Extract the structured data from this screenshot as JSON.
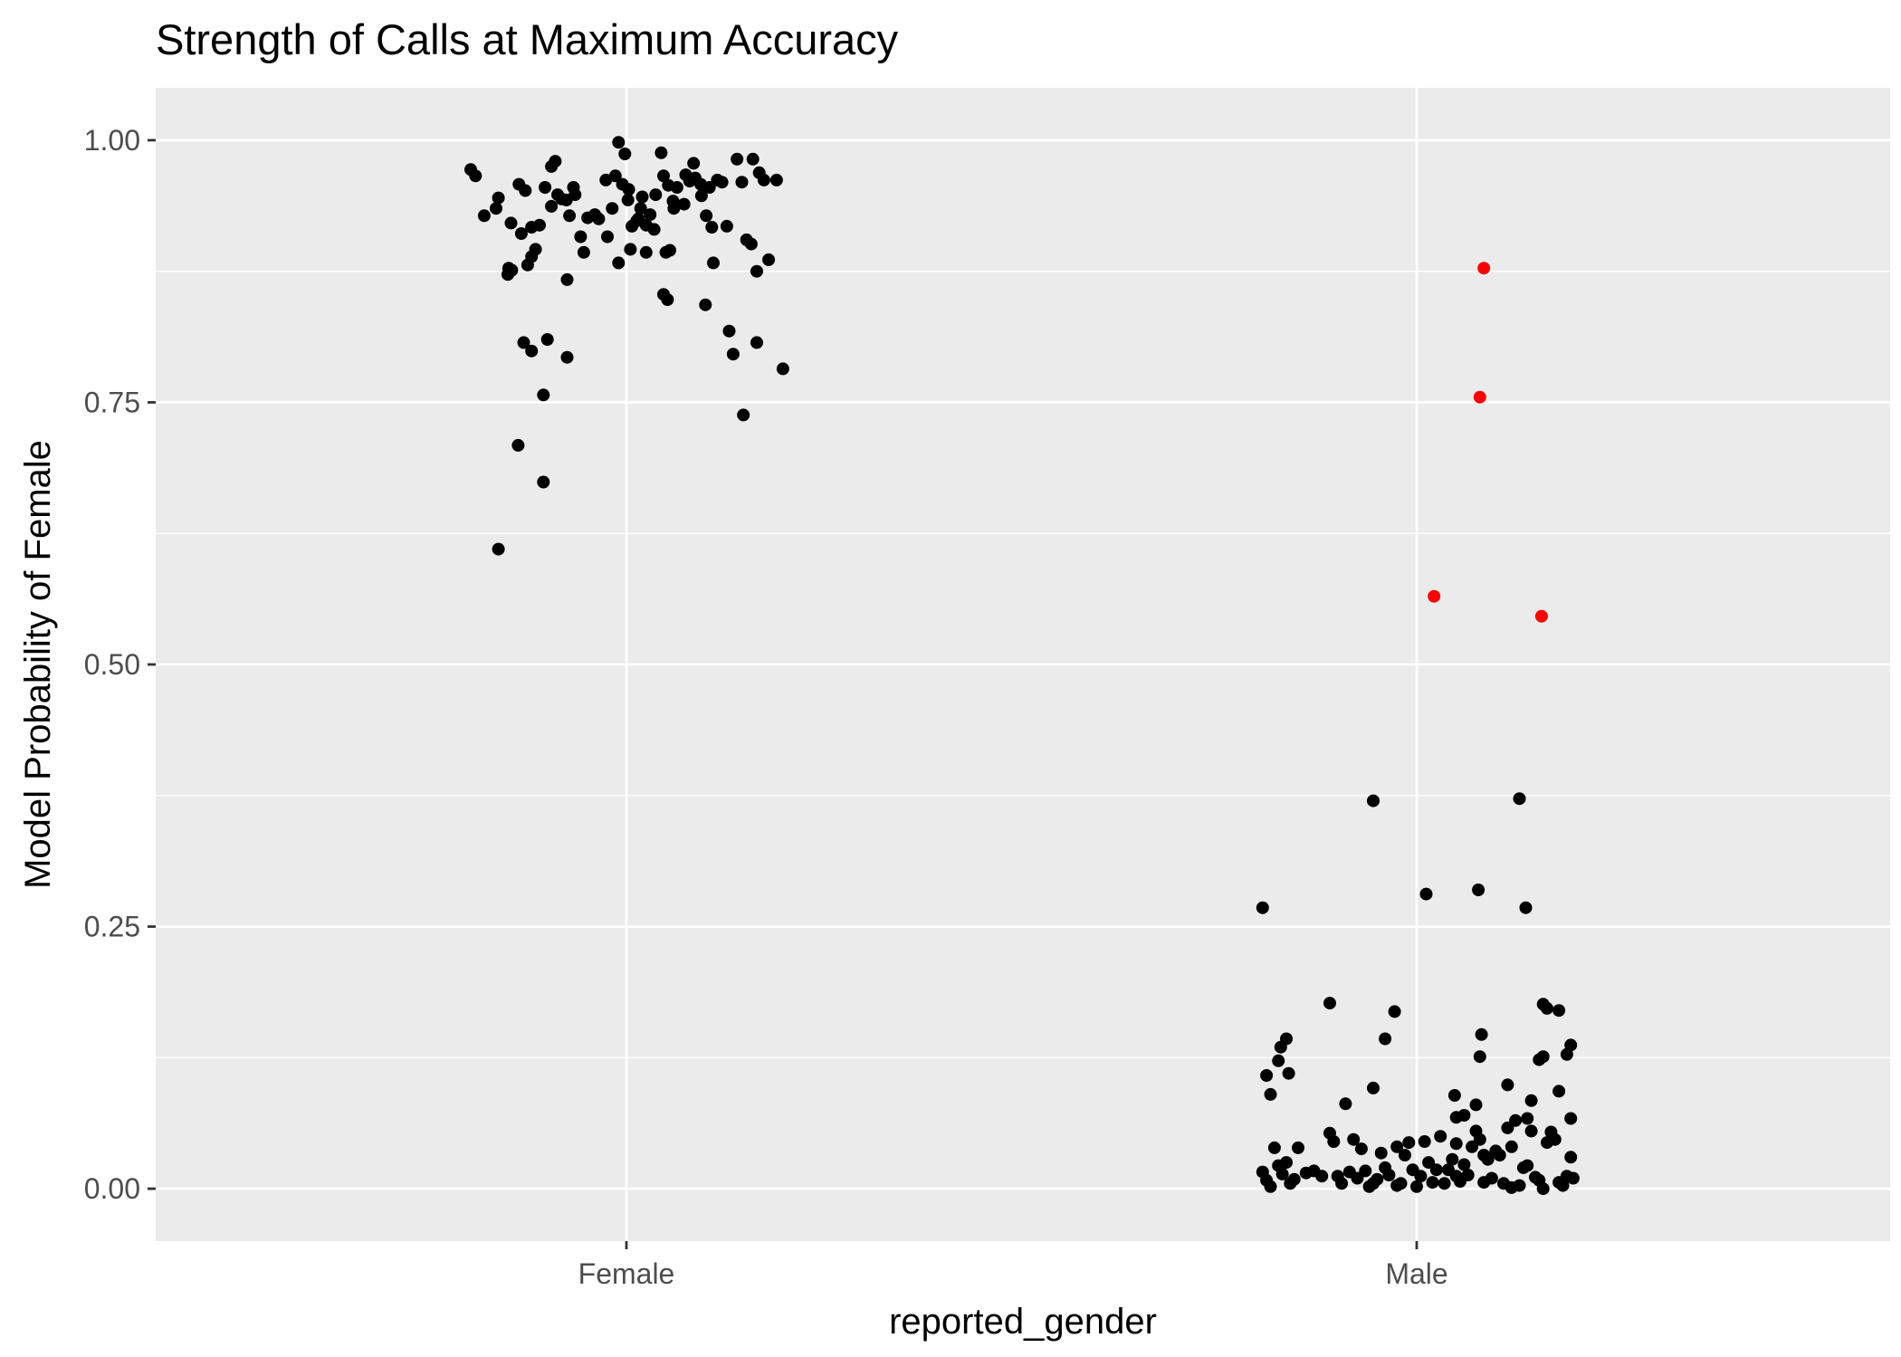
{
  "chart_data": {
    "type": "scatter",
    "title": "Strength of Calls at Maximum Accuracy",
    "xlabel": "reported_gender",
    "ylabel": "Model Probability of Female",
    "categories": [
      "Female",
      "Male"
    ],
    "ylim": [
      -0.05,
      1.05
    ],
    "yticks": [
      "0.00",
      "0.25",
      "0.50",
      "0.75",
      "1.00"
    ],
    "grid": true,
    "legend": "none",
    "colors": {
      "correct": "#000000",
      "misclassified": "#ff0000",
      "panel": "#ebebeb",
      "grid": "#ffffff"
    },
    "series": [
      {
        "category": "Female",
        "color": "#000000",
        "points": [
          [
            -0.197,
            0.972
          ],
          [
            -0.191,
            0.966
          ],
          [
            -0.18,
            0.928
          ],
          [
            -0.165,
            0.935
          ],
          [
            -0.162,
            0.945
          ],
          [
            -0.149,
            0.878
          ],
          [
            -0.146,
            0.921
          ],
          [
            -0.136,
            0.958
          ],
          [
            -0.133,
            0.911
          ],
          [
            -0.128,
            0.952
          ],
          [
            -0.12,
            0.917
          ],
          [
            -0.11,
            0.919
          ],
          [
            -0.103,
            0.955
          ],
          [
            -0.095,
            0.975
          ],
          [
            -0.09,
            0.98
          ],
          [
            -0.087,
            0.948
          ],
          [
            -0.082,
            0.944
          ],
          [
            -0.076,
            0.943
          ],
          [
            -0.072,
            0.928
          ],
          [
            -0.067,
            0.955
          ],
          [
            -0.058,
            0.908
          ],
          [
            -0.054,
            0.893
          ],
          [
            -0.049,
            0.926
          ],
          [
            -0.04,
            0.929
          ],
          [
            -0.035,
            0.925
          ],
          [
            -0.026,
            0.962
          ],
          [
            -0.024,
            0.908
          ],
          [
            -0.018,
            0.935
          ],
          [
            -0.014,
            0.966
          ],
          [
            -0.01,
            0.998
          ],
          [
            -0.005,
            0.958
          ],
          [
            -0.002,
            0.987
          ],
          [
            0.003,
            0.953
          ],
          [
            0.007,
            0.918
          ],
          [
            0.013,
            0.923
          ],
          [
            0.018,
            0.935
          ],
          [
            0.025,
            0.919
          ],
          [
            0.03,
            0.929
          ],
          [
            0.037,
            0.948
          ],
          [
            0.044,
            0.988
          ],
          [
            0.047,
            0.966
          ],
          [
            0.053,
            0.957
          ],
          [
            0.059,
            0.942
          ],
          [
            0.064,
            0.955
          ],
          [
            0.073,
            0.939
          ],
          [
            0.08,
            0.961
          ],
          [
            0.087,
            0.964
          ],
          [
            0.094,
            0.958
          ],
          [
            0.101,
            0.928
          ],
          [
            0.108,
            0.917
          ],
          [
            0.115,
            0.962
          ],
          [
            0.121,
            0.96
          ],
          [
            0.127,
            0.918
          ],
          [
            0.14,
            0.982
          ],
          [
            0.146,
            0.96
          ],
          [
            0.152,
            0.905
          ],
          [
            0.158,
            0.901
          ],
          [
            0.165,
            0.875
          ],
          [
            0.174,
            0.962
          ],
          [
            0.168,
            0.969
          ],
          [
            0.18,
            0.886
          ],
          [
            -0.15,
            0.872
          ],
          [
            -0.145,
            0.876
          ],
          [
            -0.125,
            0.881
          ],
          [
            -0.12,
            0.889
          ],
          [
            -0.115,
            0.896
          ],
          [
            -0.075,
            0.867
          ],
          [
            -0.01,
            0.883
          ],
          [
            0.005,
            0.896
          ],
          [
            0.025,
            0.893
          ],
          [
            0.05,
            0.893
          ],
          [
            0.055,
            0.895
          ],
          [
            0.11,
            0.883
          ],
          [
            -0.13,
            0.807
          ],
          [
            -0.12,
            0.799
          ],
          [
            -0.1,
            0.81
          ],
          [
            -0.075,
            0.793
          ],
          [
            -0.137,
            0.709
          ],
          [
            -0.105,
            0.757
          ],
          [
            -0.105,
            0.674
          ],
          [
            -0.162,
            0.61
          ],
          [
            0.047,
            0.853
          ],
          [
            0.052,
            0.848
          ],
          [
            0.1,
            0.843
          ],
          [
            0.13,
            0.818
          ],
          [
            0.135,
            0.796
          ],
          [
            0.165,
            0.807
          ],
          [
            0.198,
            0.782
          ],
          [
            0.148,
            0.738
          ],
          [
            0.06,
            0.935
          ],
          [
            0.095,
            0.947
          ],
          [
            0.002,
            0.943
          ],
          [
            -0.095,
            0.937
          ],
          [
            -0.065,
            0.948
          ],
          [
            0.015,
            0.925
          ],
          [
            0.075,
            0.967
          ],
          [
            0.02,
            0.946
          ],
          [
            0.19,
            0.962
          ],
          [
            0.105,
            0.955
          ],
          [
            0.16,
            0.982
          ],
          [
            0.085,
            0.978
          ],
          [
            0.035,
            0.915
          ]
        ]
      },
      {
        "category": "Male",
        "color": "#000000",
        "points": [
          [
            -0.195,
            0.268
          ],
          [
            -0.19,
            0.108
          ],
          [
            -0.185,
            0.09
          ],
          [
            -0.175,
            0.122
          ],
          [
            -0.172,
            0.135
          ],
          [
            -0.165,
            0.143
          ],
          [
            -0.162,
            0.11
          ],
          [
            -0.11,
            0.177
          ],
          [
            -0.09,
            0.081
          ],
          [
            -0.055,
            0.096
          ],
          [
            -0.055,
            0.37
          ],
          [
            -0.04,
            0.143
          ],
          [
            -0.028,
            0.169
          ],
          [
            0.012,
            0.281
          ],
          [
            0.078,
            0.285
          ],
          [
            0.08,
            0.126
          ],
          [
            0.082,
            0.147
          ],
          [
            0.13,
            0.372
          ],
          [
            0.138,
            0.268
          ],
          [
            0.155,
            0.123
          ],
          [
            0.16,
            0.126
          ],
          [
            0.16,
            0.176
          ],
          [
            0.165,
            0.172
          ],
          [
            0.18,
            0.17
          ],
          [
            0.19,
            0.128
          ],
          [
            0.195,
            0.137
          ],
          [
            0.18,
            0.093
          ],
          [
            0.195,
            0.067
          ],
          [
            0.14,
            0.067
          ],
          [
            0.145,
            0.084
          ],
          [
            0.115,
            0.099
          ],
          [
            0.06,
            0.07
          ],
          [
            0.048,
            0.089
          ],
          [
            0.05,
            0.068
          ],
          [
            0.075,
            0.08
          ],
          [
            -0.195,
            0.016
          ],
          [
            -0.19,
            0.008
          ],
          [
            -0.185,
            0.002
          ],
          [
            -0.18,
            0.039
          ],
          [
            -0.175,
            0.022
          ],
          [
            -0.17,
            0.014
          ],
          [
            -0.165,
            0.025
          ],
          [
            -0.16,
            0.005
          ],
          [
            -0.155,
            0.009
          ],
          [
            -0.15,
            0.039
          ],
          [
            -0.14,
            0.015
          ],
          [
            -0.13,
            0.017
          ],
          [
            -0.12,
            0.012
          ],
          [
            -0.11,
            0.053
          ],
          [
            -0.105,
            0.045
          ],
          [
            -0.1,
            0.012
          ],
          [
            -0.095,
            0.005
          ],
          [
            -0.085,
            0.016
          ],
          [
            -0.08,
            0.047
          ],
          [
            -0.075,
            0.01
          ],
          [
            -0.07,
            0.038
          ],
          [
            -0.065,
            0.017
          ],
          [
            -0.06,
            0.002
          ],
          [
            -0.055,
            0.005
          ],
          [
            -0.05,
            0.009
          ],
          [
            -0.045,
            0.034
          ],
          [
            -0.04,
            0.02
          ],
          [
            -0.035,
            0.013
          ],
          [
            -0.025,
            0.003
          ],
          [
            -0.02,
            0.005
          ],
          [
            -0.015,
            0.032
          ],
          [
            -0.01,
            0.044
          ],
          [
            -0.005,
            0.018
          ],
          [
            0.0,
            0.002
          ],
          [
            0.005,
            0.012
          ],
          [
            0.01,
            0.045
          ],
          [
            0.015,
            0.025
          ],
          [
            0.02,
            0.006
          ],
          [
            0.025,
            0.018
          ],
          [
            0.03,
            0.05
          ],
          [
            0.035,
            0.005
          ],
          [
            0.04,
            0.018
          ],
          [
            0.045,
            0.028
          ],
          [
            0.05,
            0.012
          ],
          [
            0.055,
            0.007
          ],
          [
            0.06,
            0.023
          ],
          [
            0.065,
            0.013
          ],
          [
            0.07,
            0.04
          ],
          [
            0.075,
            0.055
          ],
          [
            0.08,
            0.047
          ],
          [
            0.085,
            0.006
          ],
          [
            0.09,
            0.028
          ],
          [
            0.095,
            0.01
          ],
          [
            0.1,
            0.036
          ],
          [
            0.105,
            0.032
          ],
          [
            0.11,
            0.005
          ],
          [
            0.115,
            0.058
          ],
          [
            0.12,
            0.001
          ],
          [
            0.125,
            0.065
          ],
          [
            0.13,
            0.003
          ],
          [
            0.135,
            0.02
          ],
          [
            0.14,
            0.022
          ],
          [
            0.145,
            0.055
          ],
          [
            0.15,
            0.011
          ],
          [
            0.155,
            0.008
          ],
          [
            0.16,
            0.0
          ],
          [
            0.165,
            0.044
          ],
          [
            0.17,
            0.054
          ],
          [
            0.175,
            0.047
          ],
          [
            0.18,
            0.006
          ],
          [
            0.185,
            0.003
          ],
          [
            0.19,
            0.012
          ],
          [
            0.195,
            0.03
          ],
          [
            0.198,
            0.01
          ],
          [
            -0.025,
            0.04
          ],
          [
            0.05,
            0.043
          ],
          [
            0.085,
            0.032
          ],
          [
            0.12,
            0.04
          ]
        ]
      },
      {
        "category": "Male",
        "color": "#ff0000",
        "points": [
          [
            0.085,
            0.878
          ],
          [
            0.08,
            0.755
          ],
          [
            0.022,
            0.565
          ],
          [
            0.158,
            0.546
          ]
        ]
      }
    ]
  }
}
